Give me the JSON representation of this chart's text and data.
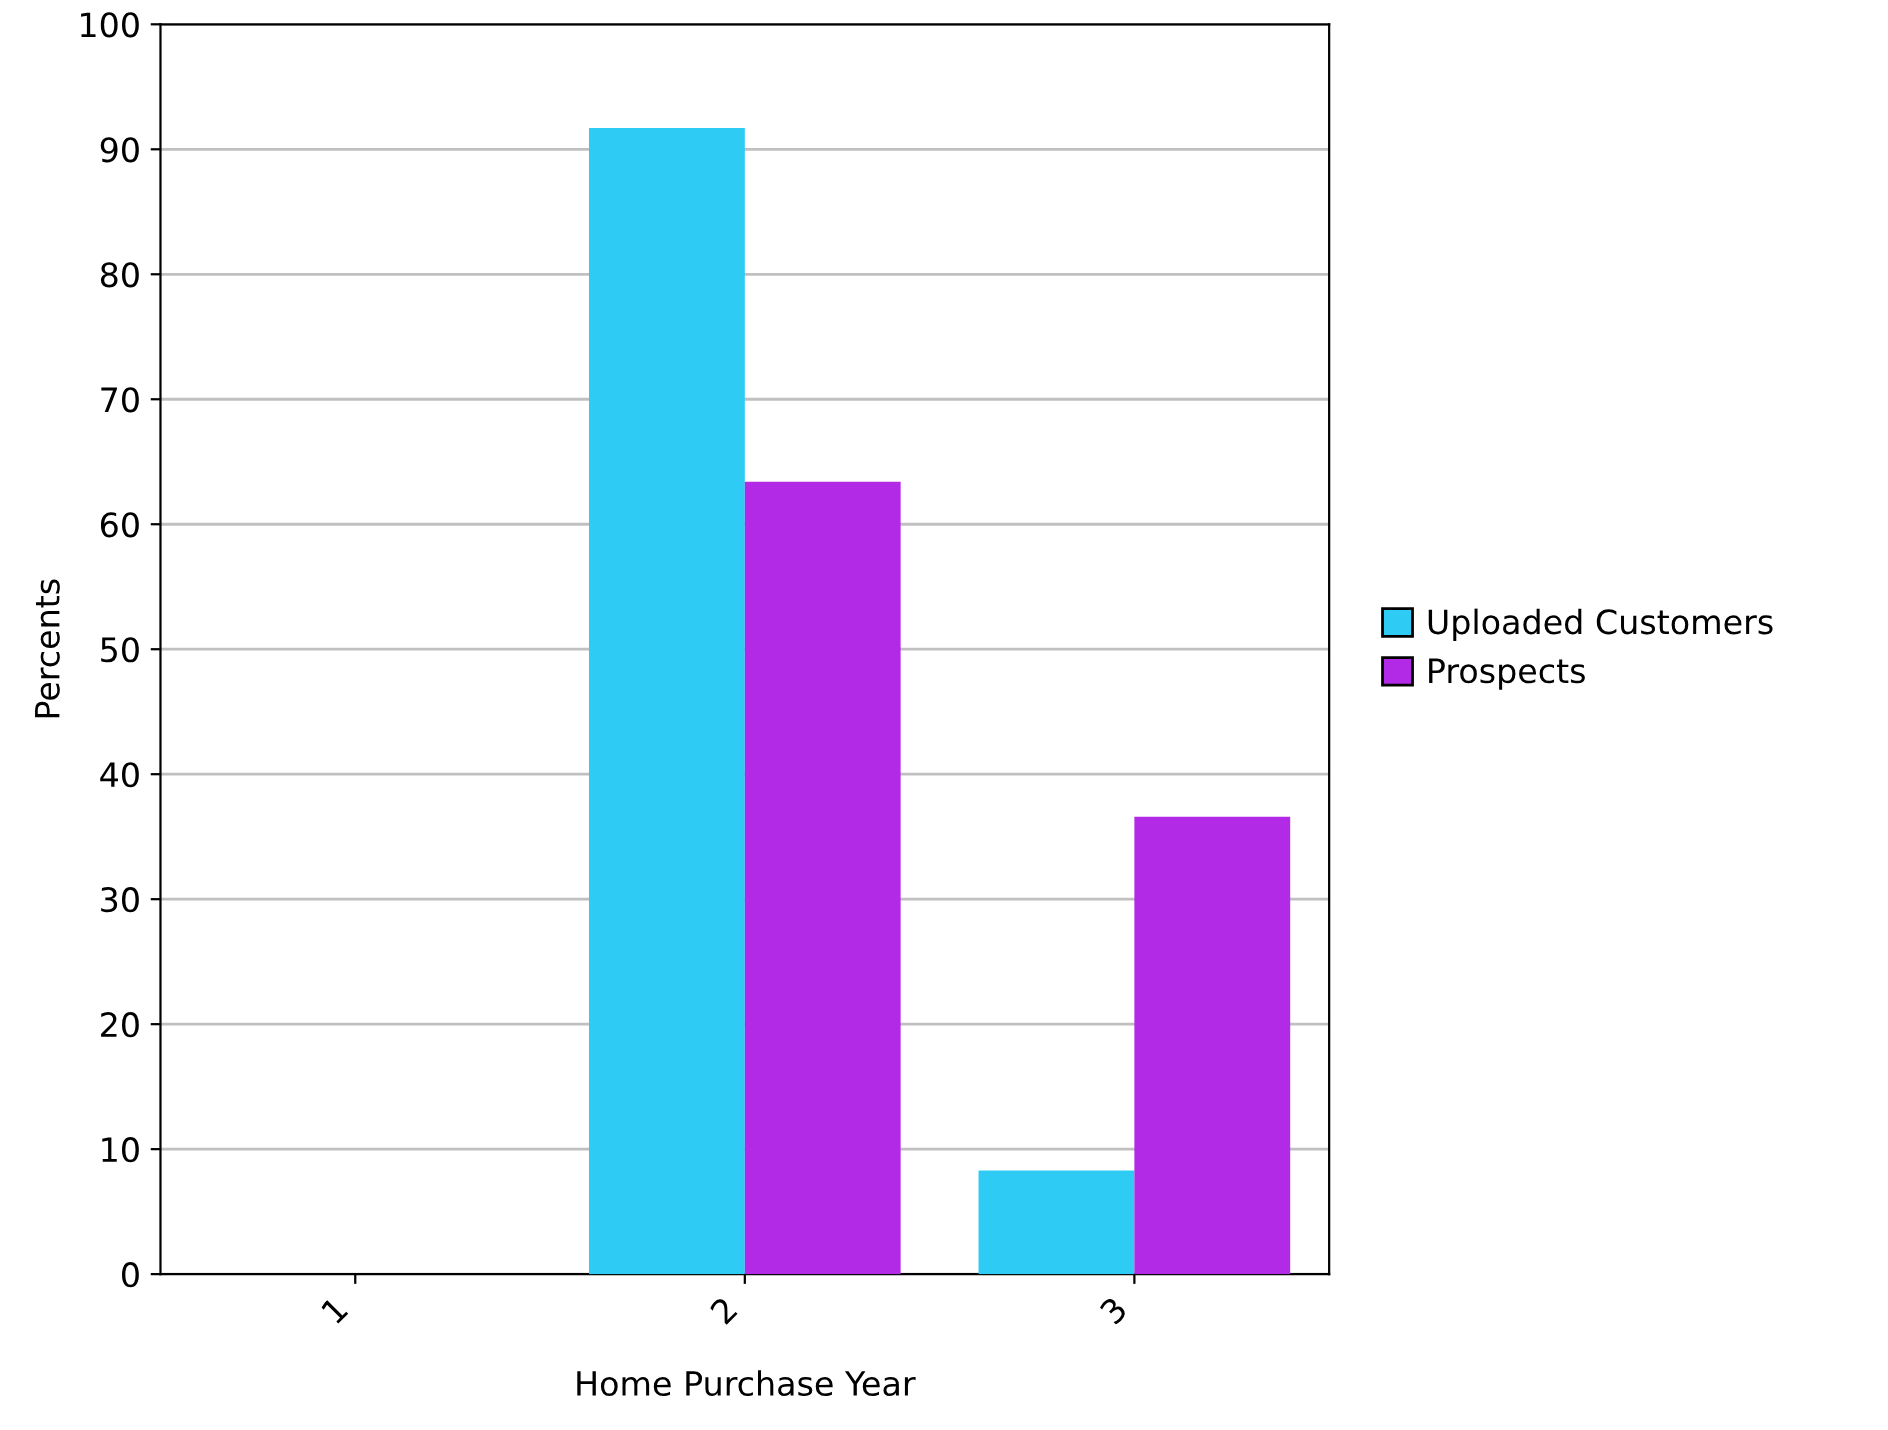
{
  "chart_data": {
    "type": "bar",
    "xlabel": "Home Purchase Year",
    "ylabel": "Percents",
    "categories": [
      "1",
      "2",
      "3"
    ],
    "series": [
      {
        "name": "Uploaded Customers",
        "color": "#2ecbf5",
        "values": [
          0,
          91.7,
          8.3
        ]
      },
      {
        "name": "Prospects",
        "color": "#b22ae6",
        "values": [
          0,
          63.4,
          36.6
        ]
      }
    ],
    "ylim": [
      0,
      100
    ],
    "yticks": [
      0,
      10,
      20,
      30,
      40,
      50,
      60,
      70,
      80,
      90,
      100
    ],
    "grid": "y",
    "legend": "right"
  }
}
